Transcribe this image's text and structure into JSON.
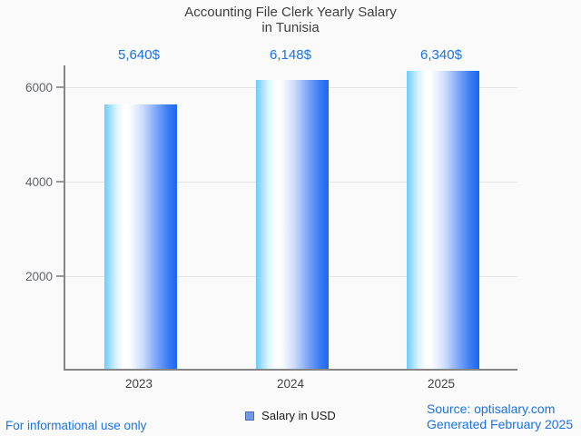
{
  "title": {
    "line1": "Accounting File Clerk Yearly Salary",
    "line2": "in Tunisia"
  },
  "chart_data": {
    "type": "bar",
    "title": "Accounting File Clerk Yearly Salary in Tunisia",
    "categories": [
      "2023",
      "2024",
      "2025"
    ],
    "values": [
      5640,
      6148,
      6340
    ],
    "value_labels": [
      "5,640$",
      "6,148$",
      "6,340$"
    ],
    "series_name": "Salary in USD",
    "xlabel": "",
    "ylabel": "",
    "ylim": [
      0,
      6462
    ],
    "yticks": [
      6000,
      4000,
      2000
    ],
    "ytick_labels": [
      "6000",
      "4000",
      "2000"
    ],
    "grid": "horizontal",
    "legend_position": "bottom-center",
    "bar_gradient": [
      "#6dcbfa",
      "#ffffff",
      "#1b66f2"
    ],
    "value_label_color": "#1a73e8",
    "axis_color": "#858585",
    "gridline_color": "#e4e4e4"
  },
  "legend": {
    "label": "Salary in USD",
    "marker_color": "#7598e6"
  },
  "footer": {
    "left": "For informational use only",
    "source": "Source: optisalary.com",
    "generated": "Generated February 2025",
    "text_color": "#1a73e8"
  }
}
